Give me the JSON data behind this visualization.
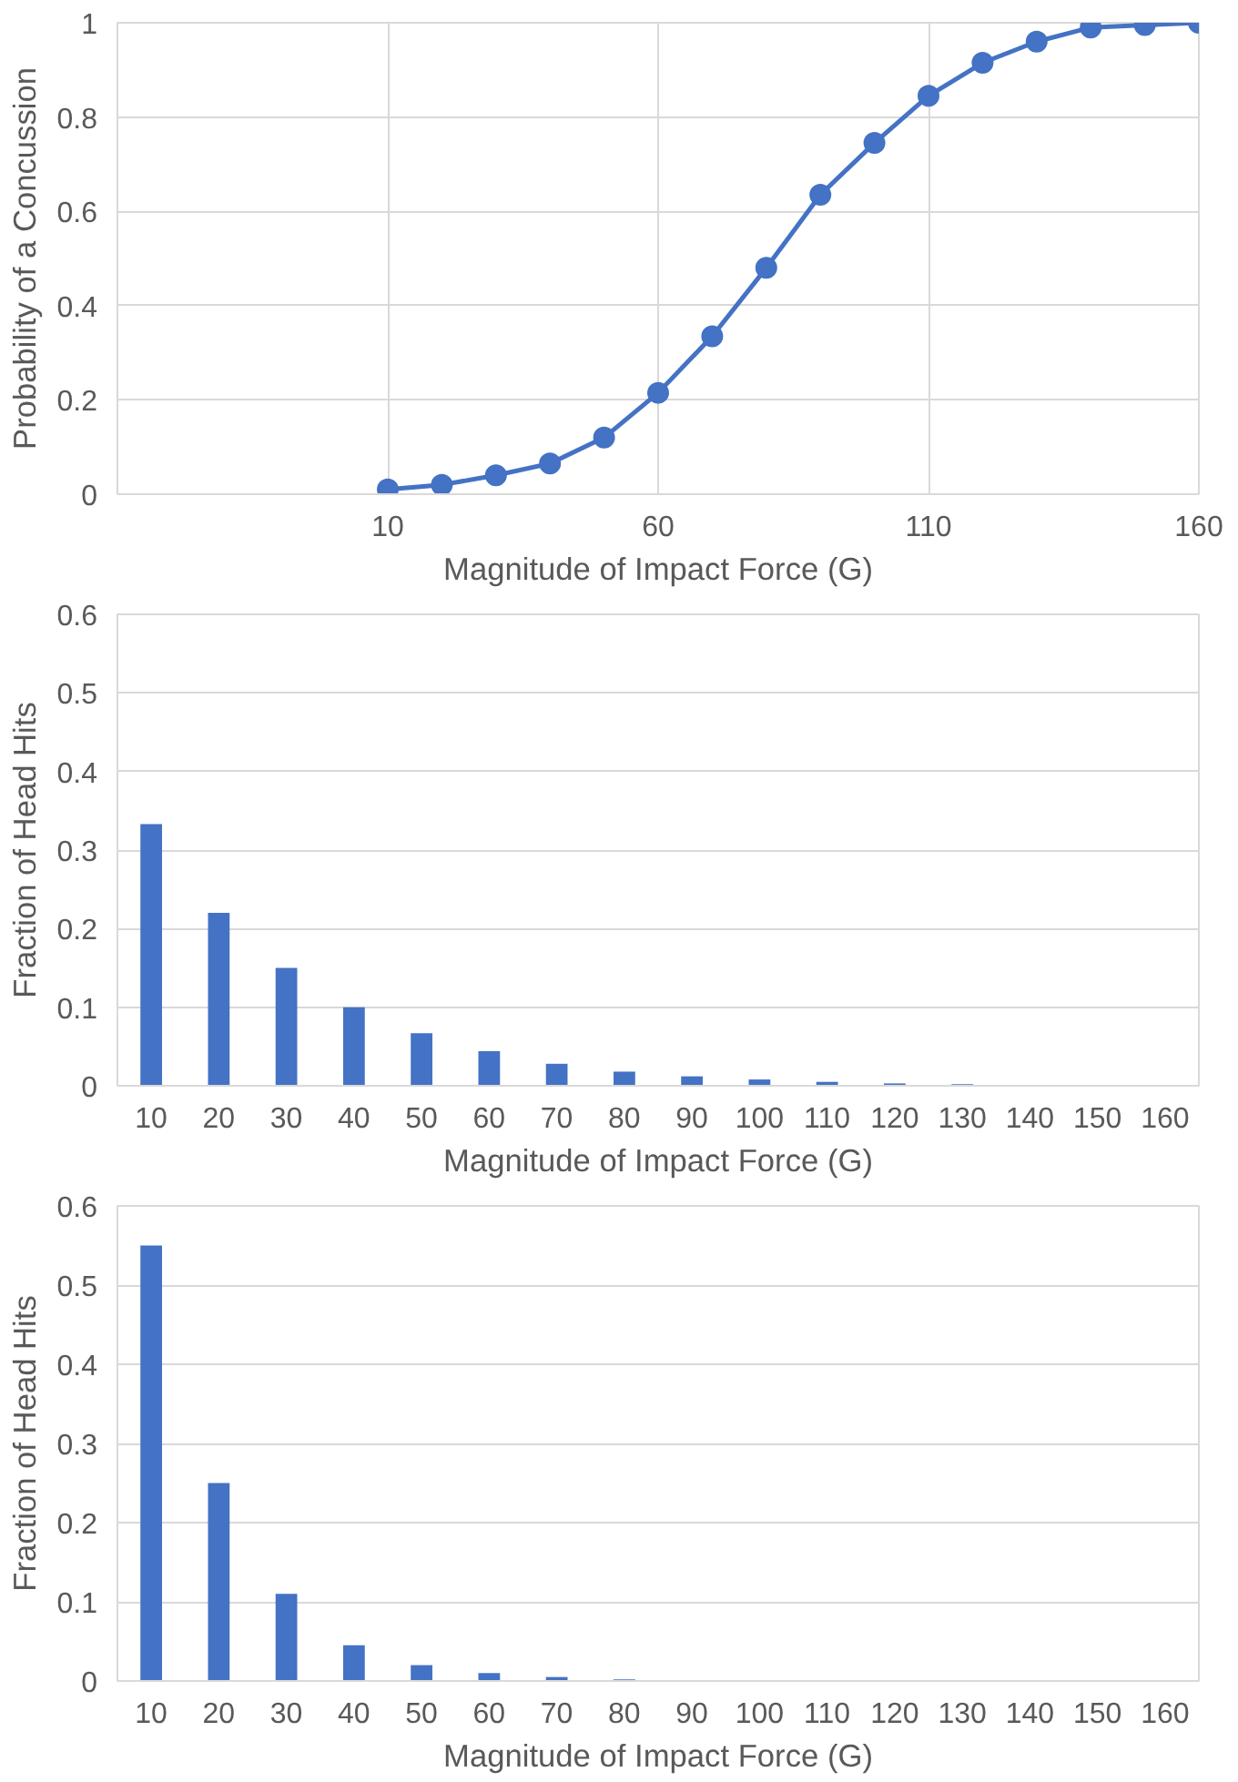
{
  "chart_data": [
    {
      "type": "line",
      "xlabel": "Magnitude of Impact Force (G)",
      "ylabel": "Probability of a Concussion",
      "x": [
        10,
        20,
        30,
        40,
        50,
        60,
        70,
        80,
        90,
        100,
        110,
        120,
        130,
        140,
        150,
        160
      ],
      "series": [
        {
          "color": "#4472c4",
          "values": [
            0.01,
            0.02,
            0.04,
            0.065,
            0.12,
            0.215,
            0.335,
            0.48,
            0.635,
            0.745,
            0.845,
            0.915,
            0.96,
            0.99,
            0.995,
            1.0
          ]
        }
      ],
      "xlim": [
        -40,
        160
      ],
      "xticks": [
        10,
        60,
        110,
        160
      ],
      "ylim": [
        0,
        1
      ],
      "yticks": [
        0,
        0.2,
        0.4,
        0.6,
        0.8,
        1
      ],
      "grid": true,
      "marker": "circle",
      "line_style": "solid"
    },
    {
      "type": "bar",
      "xlabel": "Magnitude of Impact Force (G)",
      "ylabel": "Fraction of Head Hits",
      "categories": [
        "10",
        "20",
        "30",
        "40",
        "50",
        "60",
        "70",
        "80",
        "90",
        "100",
        "110",
        "120",
        "130",
        "140",
        "150",
        "160"
      ],
      "series": [
        {
          "color": "#4472c4",
          "values": [
            0.333,
            0.22,
            0.15,
            0.1,
            0.067,
            0.044,
            0.028,
            0.018,
            0.012,
            0.008,
            0.005,
            0.003,
            0.002,
            null,
            null,
            null
          ]
        }
      ],
      "ylim": [
        0,
        0.6
      ],
      "yticks": [
        0,
        0.1,
        0.2,
        0.3,
        0.4,
        0.5,
        0.6
      ],
      "grid": "y"
    },
    {
      "type": "bar",
      "xlabel": "Magnitude of Impact Force (G)",
      "ylabel": "Fraction of Head Hits",
      "categories": [
        "10",
        "20",
        "30",
        "40",
        "50",
        "60",
        "70",
        "80",
        "90",
        "100",
        "110",
        "120",
        "130",
        "140",
        "150",
        "160"
      ],
      "series": [
        {
          "color": "#4472c4",
          "values": [
            0.55,
            0.25,
            0.11,
            0.045,
            0.02,
            0.01,
            0.005,
            0.002,
            null,
            0,
            0,
            0,
            0,
            0,
            0,
            0
          ]
        }
      ],
      "ylim": [
        0,
        0.6
      ],
      "yticks": [
        0,
        0.1,
        0.2,
        0.3,
        0.4,
        0.5,
        0.6
      ],
      "grid": "y"
    }
  ]
}
